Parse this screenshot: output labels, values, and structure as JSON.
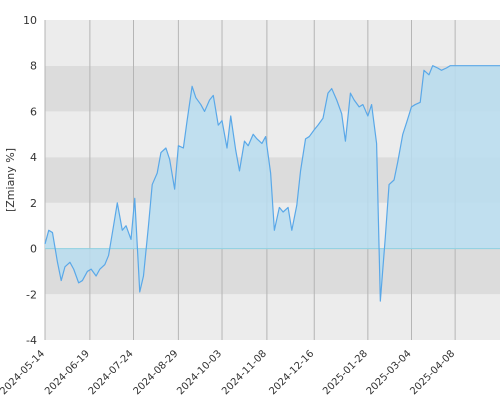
{
  "chart_data": {
    "type": "area",
    "ylabel": "[Zmiany %]",
    "xlabel": "",
    "title": "",
    "ylim": [
      -4,
      10
    ],
    "y_ticks": [
      -4,
      -2,
      0,
      2,
      4,
      6,
      8,
      10
    ],
    "x_tick_labels": [
      "2024-05-14",
      "2024-06-19",
      "2024-07-24",
      "2024-08-29",
      "2024-10-03",
      "2024-11-08",
      "2024-12-16",
      "2025-01-28",
      "2025-03-04",
      "2025-04-08"
    ],
    "x_range": [
      "2024-05-14",
      "2025-05-14"
    ],
    "grid": "vertical lines at ticks; alternating horizontal bands",
    "colors": {
      "line": "#5aa8e8",
      "fill": "#b8ddf0",
      "band_light": "#ececec",
      "band_dark": "#dcdcdc",
      "grid": "#b5b5b5"
    },
    "series": [
      {
        "x": [
          "2024-05-14",
          "2024-05-17",
          "2024-05-20",
          "2024-05-24",
          "2024-05-27",
          "2024-05-30",
          "2024-06-03",
          "2024-06-06",
          "2024-06-10",
          "2024-06-13",
          "2024-06-17",
          "2024-06-20",
          "2024-06-24",
          "2024-06-27",
          "2024-07-01",
          "2024-07-04",
          "2024-07-08",
          "2024-07-11",
          "2024-07-15",
          "2024-07-18",
          "2024-07-22",
          "2024-07-25",
          "2024-07-29",
          "2024-08-01",
          "2024-08-05",
          "2024-08-08",
          "2024-08-12",
          "2024-08-15",
          "2024-08-19",
          "2024-08-22",
          "2024-08-26",
          "2024-08-29",
          "2024-09-02",
          "2024-09-05",
          "2024-09-09",
          "2024-09-12",
          "2024-09-16",
          "2024-09-19",
          "2024-09-23",
          "2024-09-26",
          "2024-09-30",
          "2024-10-03",
          "2024-10-07",
          "2024-10-10",
          "2024-10-14",
          "2024-10-17",
          "2024-10-21",
          "2024-10-24",
          "2024-10-28",
          "2024-10-31",
          "2024-11-04",
          "2024-11-07",
          "2024-11-11",
          "2024-11-14",
          "2024-11-18",
          "2024-11-21",
          "2024-11-25",
          "2024-11-28",
          "2024-12-02",
          "2024-12-05",
          "2024-12-09",
          "2024-12-12",
          "2024-12-16",
          "2024-12-19",
          "2024-12-23",
          "2024-12-27",
          "2024-12-30",
          "2025-01-03",
          "2025-01-07",
          "2025-01-10",
          "2025-01-14",
          "2025-01-17",
          "2025-01-21",
          "2025-01-24",
          "2025-01-28",
          "2025-01-31",
          "2025-02-04",
          "2025-02-07",
          "2025-02-11",
          "2025-02-14",
          "2025-02-18",
          "2025-02-21",
          "2025-02-25",
          "2025-02-28",
          "2025-03-04",
          "2025-03-07",
          "2025-03-11",
          "2025-03-14",
          "2025-03-18",
          "2025-03-21",
          "2025-03-25",
          "2025-03-28",
          "2025-04-01",
          "2025-04-04",
          "2025-04-07",
          "2025-04-08",
          "2025-04-10",
          "2025-04-14",
          "2025-04-17",
          "2025-04-22",
          "2025-04-25",
          "2025-04-29",
          "2025-05-02",
          "2025-05-06",
          "2025-05-09",
          "2025-05-14"
        ],
        "values": [
          0.2,
          0.8,
          0.7,
          -0.6,
          -1.4,
          -0.8,
          -0.6,
          -0.9,
          -1.5,
          -1.4,
          -1.0,
          -0.9,
          -1.2,
          -0.9,
          -0.7,
          -0.3,
          1.0,
          2.0,
          0.8,
          1.0,
          0.4,
          2.2,
          -1.9,
          -1.2,
          1.0,
          2.8,
          3.3,
          4.2,
          4.4,
          3.9,
          2.6,
          4.5,
          4.4,
          5.6,
          7.1,
          6.6,
          6.3,
          6.0,
          6.5,
          6.7,
          5.4,
          5.6,
          4.4,
          5.8,
          4.3,
          3.4,
          4.7,
          4.5,
          5.0,
          4.8,
          4.6,
          4.9,
          3.3,
          0.8,
          1.8,
          1.6,
          1.8,
          0.8,
          1.9,
          3.4,
          4.8,
          4.9,
          5.2,
          5.4,
          5.7,
          6.8,
          7.0,
          6.5,
          5.9,
          4.7,
          6.8,
          6.5,
          6.2,
          6.3,
          5.8,
          6.3,
          4.6,
          -2.3,
          0.5,
          2.8,
          3.0,
          3.8,
          5.0,
          5.5,
          6.2,
          6.3,
          6.4,
          7.8,
          7.6,
          8.0,
          7.9,
          7.8,
          7.9,
          8.0,
          8.0,
          8.0,
          8.0,
          8.0,
          8.0,
          8.0,
          8.0,
          8.0,
          8.0,
          8.0,
          8.0,
          8.0
        ]
      }
    ]
  }
}
